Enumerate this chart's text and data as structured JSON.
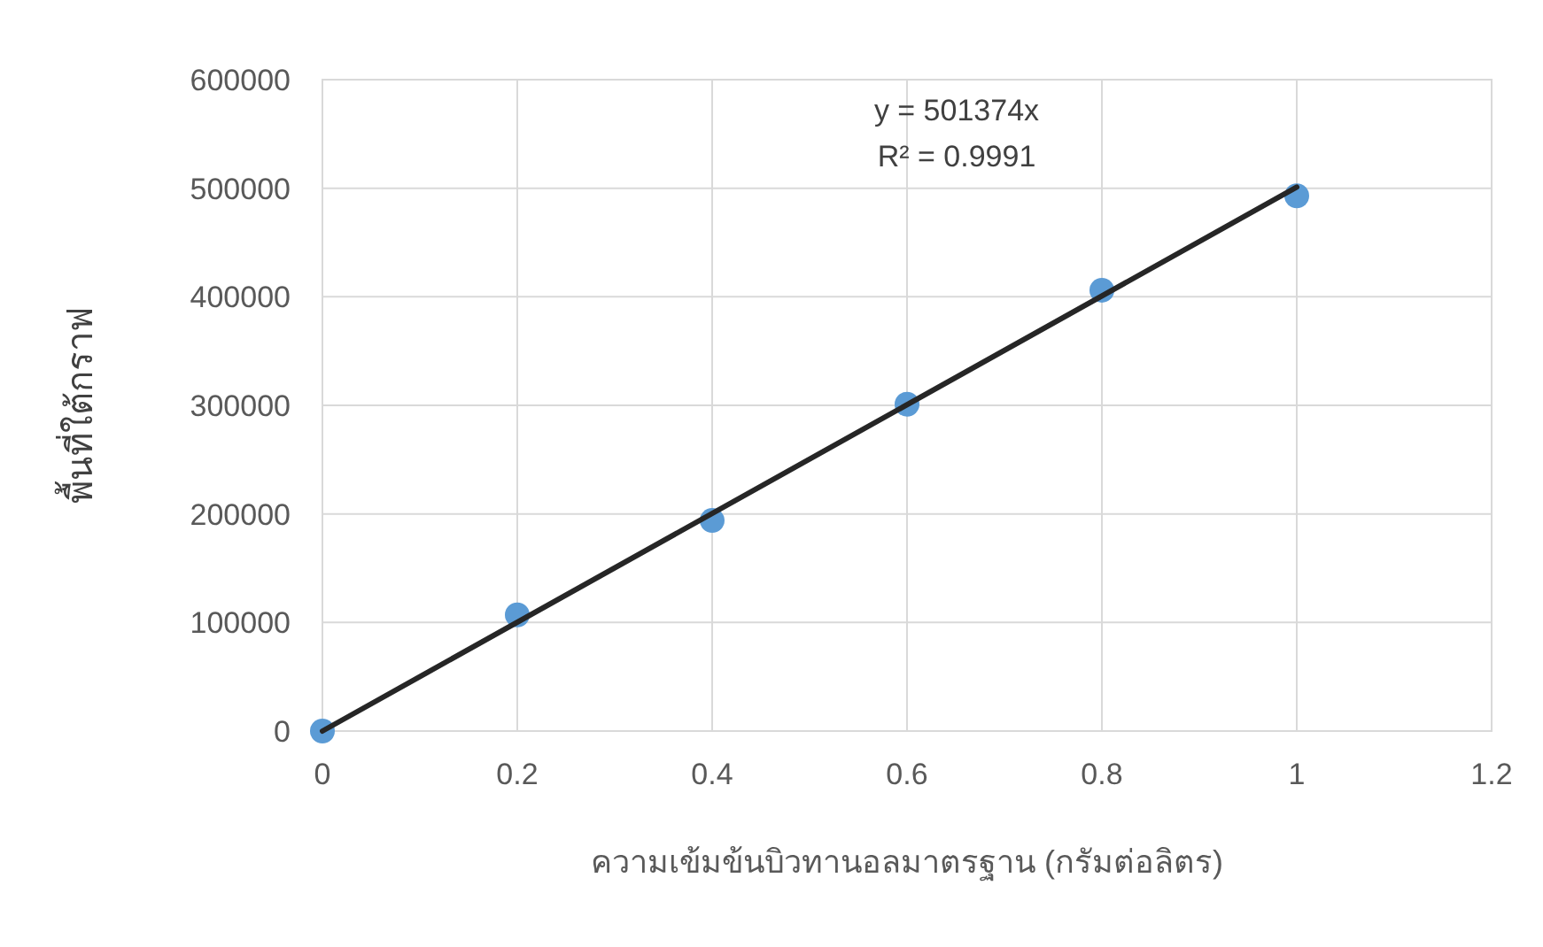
{
  "chart_data": {
    "type": "scatter",
    "xlabel": "ความเข้มข้นบิวทานอลมาตรฐาน (กรัมต่อลิตร)",
    "ylabel": "พื้นที่ใต้กราฟ",
    "x": [
      0,
      0.2,
      0.4,
      0.6,
      0.8,
      1
    ],
    "series": [
      {
        "color": "#5b9bd5",
        "values": [
          0,
          107000,
          194000,
          301000,
          406000,
          493000
        ],
        "marker": "circle"
      },
      {
        "type": "line",
        "color": "#262626",
        "x": [
          0,
          1
        ],
        "values": [
          0,
          501000
        ],
        "marker": "none",
        "line_style": "solid"
      }
    ],
    "annotations": [
      "y = 501374x",
      "R² = 0.9991"
    ],
    "xlim": [
      0,
      1.2
    ],
    "xticks": [
      0,
      0.2,
      0.4,
      0.6,
      0.8,
      1,
      1.2
    ],
    "ylim": [
      0,
      600000
    ],
    "yticks": [
      0,
      100000,
      200000,
      300000,
      400000,
      500000,
      600000
    ],
    "grid": true
  }
}
